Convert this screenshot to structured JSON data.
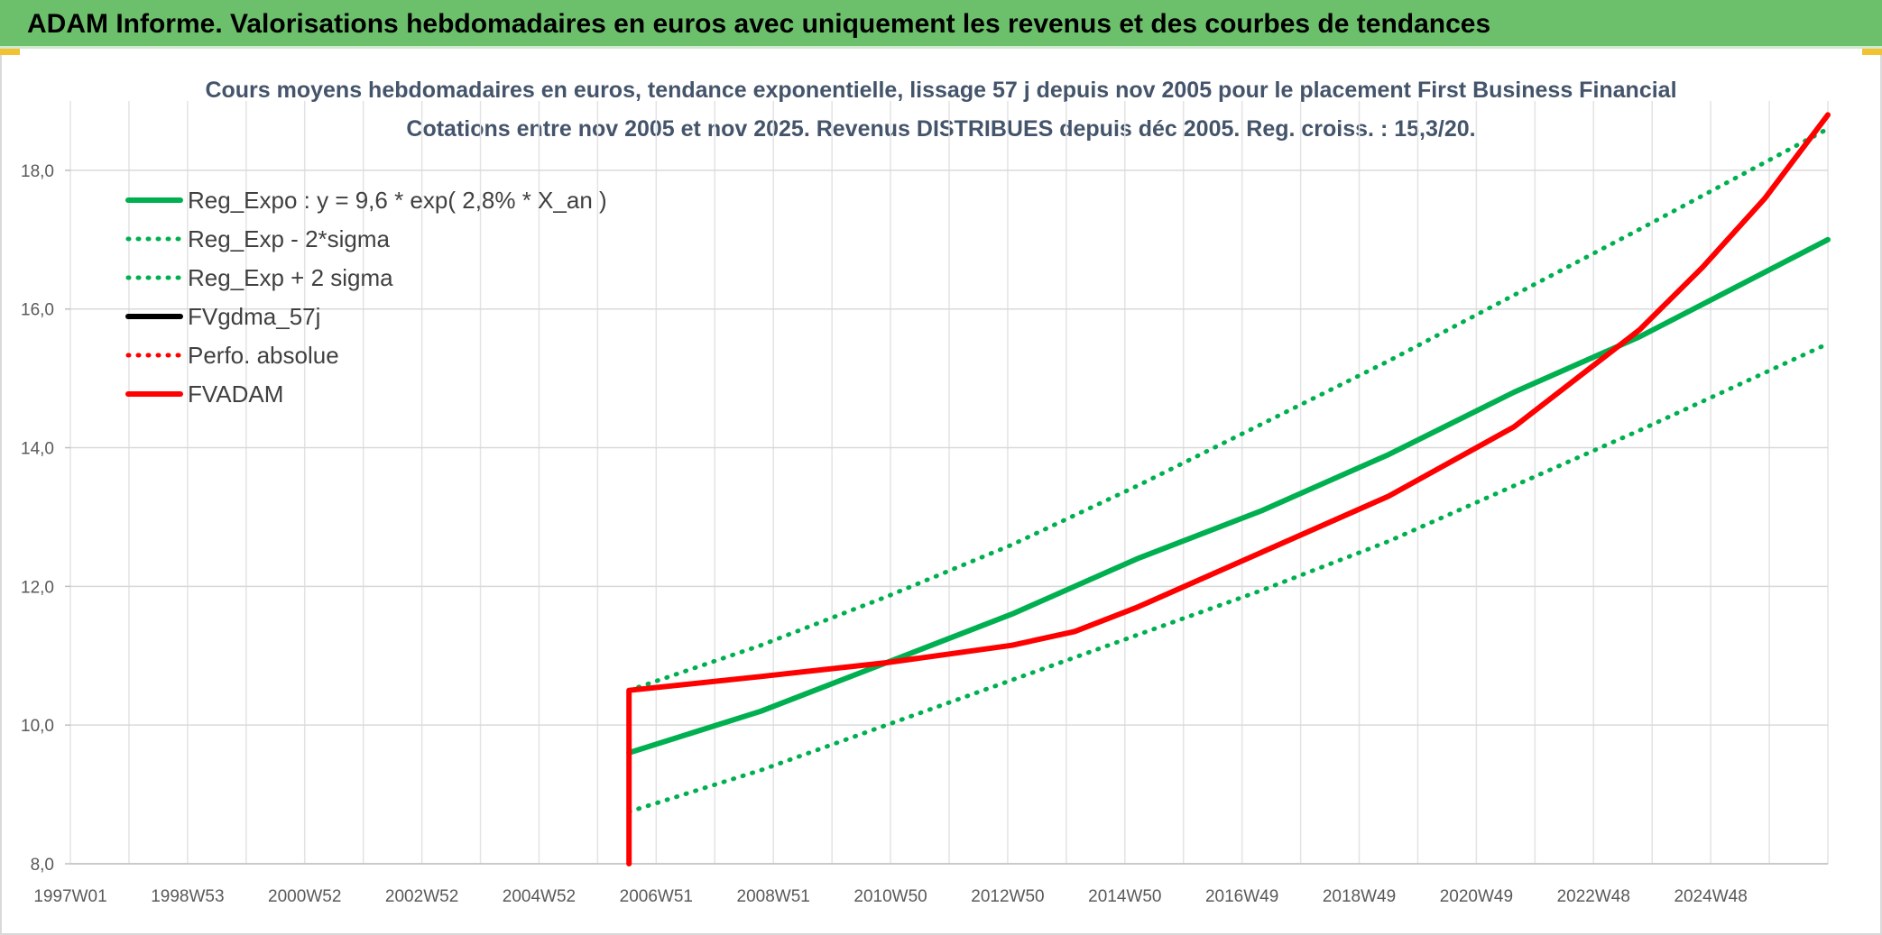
{
  "banner": {
    "title": "ADAM Informe. Valorisations hebdomadaires en euros avec uniquement les revenus et des courbes de tendances"
  },
  "chart_data": {
    "type": "line",
    "title": "Cours moyens hebdomadaires en euros, tendance exponentielle, lissage 57 j depuis nov 2005 pour le placement First Business Financial",
    "subtitle": "Cotations entre nov 2005 et nov 2025. Revenus DISTRIBUES depuis déc 2005. Reg. croiss. : 15,3/20.",
    "xlabel": "",
    "ylabel": "",
    "x_ticks": [
      "1997W01",
      "1998W53",
      "2000W52",
      "2002W52",
      "2004W52",
      "2006W51",
      "2008W51",
      "2010W50",
      "2012W50",
      "2014W50",
      "2016W49",
      "2018W49",
      "2020W49",
      "2022W48",
      "2024W48"
    ],
    "y_ticks": [
      "8,0",
      "10,0",
      "12,0",
      "14,0",
      "16,0",
      "18,0"
    ],
    "xlim": [
      1997.0,
      2025.0
    ],
    "ylim": [
      8.0,
      19.0
    ],
    "grid": true,
    "legend_position": "top-left",
    "series": [
      {
        "name": "Reg_Expo : y = 9,6 * exp( 2,8% *  X_an )",
        "color": "#00b050",
        "style": "solid",
        "x": [
          2005.9,
          2008.0,
          2010.0,
          2012.0,
          2014.0,
          2016.0,
          2018.0,
          2020.0,
          2022.0,
          2025.0
        ],
        "y": [
          9.6,
          10.2,
          10.9,
          11.6,
          12.4,
          13.1,
          13.9,
          14.8,
          15.6,
          17.0
        ]
      },
      {
        "name": "Reg_Exp - 2*sigma",
        "color": "#00b050",
        "style": "dotted",
        "x": [
          2005.9,
          2008.0,
          2010.0,
          2012.0,
          2014.0,
          2016.0,
          2018.0,
          2020.0,
          2022.0,
          2025.0
        ],
        "y": [
          8.75,
          9.35,
          10.0,
          10.65,
          11.3,
          11.95,
          12.65,
          13.45,
          14.25,
          15.5
        ]
      },
      {
        "name": "Reg_Exp + 2 sigma",
        "color": "#00b050",
        "style": "dotted",
        "x": [
          2005.9,
          2008.0,
          2010.0,
          2012.0,
          2014.0,
          2016.0,
          2018.0,
          2020.0,
          2022.0,
          2025.0
        ],
        "y": [
          10.5,
          11.15,
          11.85,
          12.6,
          13.45,
          14.35,
          15.25,
          16.2,
          17.15,
          18.6
        ]
      },
      {
        "name": "FVgdma_57j",
        "color": "#000000",
        "style": "solid",
        "x": [],
        "y": []
      },
      {
        "name": "Perfo. absolue",
        "color": "#ff0000",
        "style": "dotted",
        "x": [],
        "y": []
      },
      {
        "name": "FVADAM",
        "color": "#ff0000",
        "style": "solid",
        "x": [
          2005.9,
          2005.9,
          2008.0,
          2010.0,
          2012.0,
          2013.0,
          2014.0,
          2016.0,
          2018.0,
          2020.0,
          2021.0,
          2022.0,
          2023.0,
          2024.0,
          2025.0
        ],
        "y": [
          8.0,
          10.5,
          10.7,
          10.9,
          11.15,
          11.35,
          11.7,
          12.5,
          13.3,
          14.3,
          15.0,
          15.7,
          16.6,
          17.6,
          18.8
        ]
      }
    ]
  }
}
